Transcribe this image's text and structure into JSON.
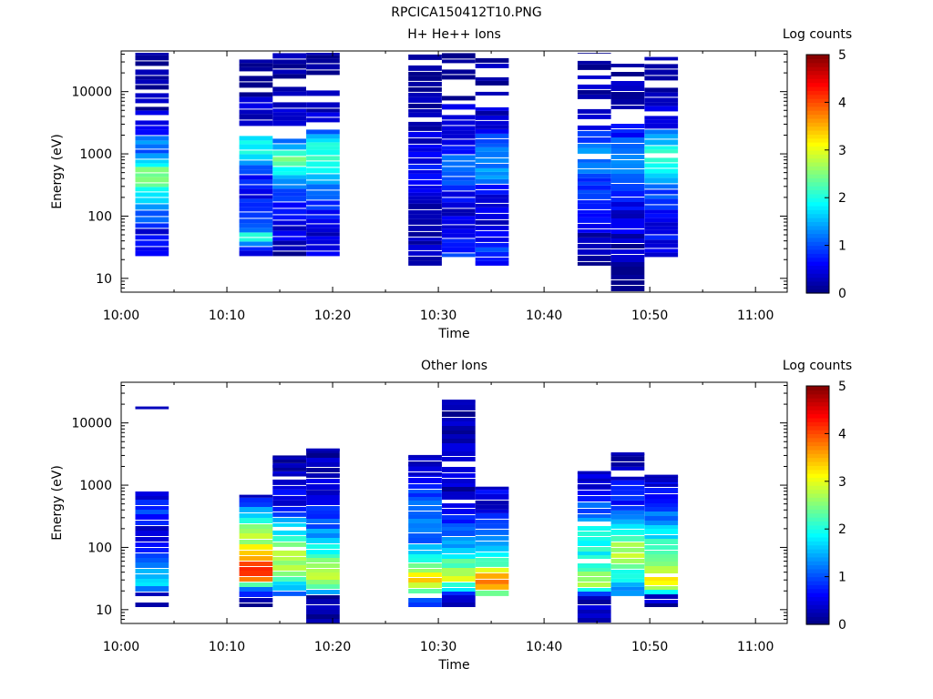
{
  "page_title": "RPCICA150412T10.PNG",
  "colorbar_title": "Log counts",
  "colorbar_ticks": [
    "0",
    "1",
    "2",
    "3",
    "4",
    "5"
  ],
  "chart_data": [
    {
      "type": "heatmap",
      "title": "H+ He++ Ions",
      "xlabel": "Time",
      "ylabel": "Energy (eV)",
      "yscale": "log",
      "ylim": [
        6,
        45000
      ],
      "xlim": [
        "10:00",
        "11:03"
      ],
      "x_tick_labels": [
        "10:00",
        "10:10",
        "10:20",
        "10:30",
        "10:40",
        "10:50",
        "11:00"
      ],
      "y_tick_labels": [
        "10",
        "100",
        "1000",
        "10000"
      ],
      "colorbar": {
        "label": "Log counts",
        "range": [
          0,
          5
        ]
      },
      "blocks": [
        {
          "t0": "10:01:20",
          "t1": "10:04:30",
          "e_min": 22,
          "e_max": 42000,
          "profile": [
            [
              22,
              0.45
            ],
            [
              60,
              0.5
            ],
            [
              150,
              1.6
            ],
            [
              300,
              2.1
            ],
            [
              500,
              2.6
            ],
            [
              700,
              1.9
            ],
            [
              1000,
              0.9
            ],
            [
              1500,
              1.3
            ],
            [
              2500,
              0.4
            ],
            [
              10000,
              0.2
            ],
            [
              42000,
              0.1
            ]
          ]
        },
        {
          "t0": "10:11:10",
          "t1": "10:14:20",
          "e_min": 22,
          "e_max": 42000,
          "profile": [
            [
              22,
              0.5
            ],
            [
              35,
              1.2
            ],
            [
              45,
              2.3
            ],
            [
              60,
              1.4
            ],
            [
              100,
              0.8
            ],
            [
              300,
              0.6
            ],
            [
              700,
              1.1
            ],
            [
              1000,
              1.8
            ],
            [
              1500,
              2.1
            ],
            [
              3000,
              0.5
            ],
            [
              10000,
              0.2
            ],
            [
              42000,
              0.1
            ]
          ]
        },
        {
          "t0": "10:14:20",
          "t1": "10:17:30",
          "e_min": 22,
          "e_max": 42000,
          "profile": [
            [
              22,
              0.1
            ],
            [
              60,
              0.5
            ],
            [
              150,
              0.8
            ],
            [
              300,
              1.1
            ],
            [
              500,
              1.8
            ],
            [
              800,
              2.3
            ],
            [
              1200,
              1.7
            ],
            [
              2000,
              0.6
            ],
            [
              10000,
              0.2
            ],
            [
              42000,
              0.1
            ]
          ]
        },
        {
          "t0": "10:17:30",
          "t1": "10:20:40",
          "e_min": 22,
          "e_max": 42000,
          "profile": [
            [
              22,
              0.9
            ],
            [
              40,
              0.4
            ],
            [
              100,
              0.6
            ],
            [
              300,
              1.4
            ],
            [
              600,
              2.2
            ],
            [
              1000,
              2.0
            ],
            [
              1600,
              1.8
            ],
            [
              3000,
              0.4
            ],
            [
              10000,
              0.2
            ],
            [
              42000,
              0.1
            ]
          ]
        },
        {
          "t0": "10:27:10",
          "t1": "10:30:20",
          "e_min": 16,
          "e_max": 42000,
          "profile": [
            [
              16,
              0.2
            ],
            [
              30,
              0.35
            ],
            [
              60,
              0.3
            ],
            [
              200,
              0.4
            ],
            [
              500,
              0.6
            ],
            [
              1000,
              0.5
            ],
            [
              3000,
              0.3
            ],
            [
              10000,
              0.15
            ],
            [
              42000,
              0.1
            ]
          ]
        },
        {
          "t0": "10:30:20",
          "t1": "10:33:30",
          "e_min": 22,
          "e_max": 42000,
          "profile": [
            [
              22,
              0.9
            ],
            [
              40,
              0.6
            ],
            [
              150,
              0.4
            ],
            [
              300,
              0.9
            ],
            [
              600,
              1.2
            ],
            [
              1000,
              0.9
            ],
            [
              3000,
              0.4
            ],
            [
              10000,
              0.2
            ],
            [
              42000,
              0.1
            ]
          ]
        },
        {
          "t0": "10:33:30",
          "t1": "10:36:40",
          "e_min": 16,
          "e_max": 42000,
          "profile": [
            [
              16,
              0.4
            ],
            [
              25,
              1.0
            ],
            [
              40,
              0.6
            ],
            [
              100,
              0.3
            ],
            [
              200,
              0.5
            ],
            [
              400,
              1.2
            ],
            [
              800,
              1.4
            ],
            [
              1500,
              1.2
            ],
            [
              3000,
              0.4
            ],
            [
              10000,
              0.2
            ],
            [
              42000,
              0.1
            ]
          ]
        },
        {
          "t0": "10:43:10",
          "t1": "10:46:20",
          "e_min": 16,
          "e_max": 42000,
          "profile": [
            [
              16,
              0.2
            ],
            [
              40,
              0.3
            ],
            [
              100,
              0.5
            ],
            [
              300,
              0.9
            ],
            [
              600,
              1.2
            ],
            [
              1000,
              1.5
            ],
            [
              1500,
              1.0
            ],
            [
              3000,
              0.5
            ],
            [
              10000,
              0.2
            ],
            [
              42000,
              0.1
            ]
          ]
        },
        {
          "t0": "10:46:20",
          "t1": "10:49:30",
          "e_min": 6,
          "e_max": 42000,
          "profile": [
            [
              6,
              0.1
            ],
            [
              16,
              0.1
            ],
            [
              60,
              0.4
            ],
            [
              200,
              0.6
            ],
            [
              400,
              1.0
            ],
            [
              700,
              1.3
            ],
            [
              1200,
              1.1
            ],
            [
              3000,
              0.5
            ],
            [
              10000,
              0.2
            ],
            [
              42000,
              0.1
            ]
          ]
        },
        {
          "t0": "10:49:30",
          "t1": "10:52:40",
          "e_min": 22,
          "e_max": 36000,
          "profile": [
            [
              22,
              0.5
            ],
            [
              40,
              0.6
            ],
            [
              100,
              0.5
            ],
            [
              250,
              1.0
            ],
            [
              500,
              2.0
            ],
            [
              1000,
              2.1
            ],
            [
              1600,
              1.6
            ],
            [
              3000,
              0.5
            ],
            [
              10000,
              0.2
            ],
            [
              36000,
              0.1
            ]
          ]
        }
      ]
    },
    {
      "type": "heatmap",
      "title": "Other Ions",
      "xlabel": "Time",
      "ylabel": "Energy (eV)",
      "yscale": "log",
      "ylim": [
        6,
        45000
      ],
      "xlim": [
        "10:00",
        "11:03"
      ],
      "x_tick_labels": [
        "10:00",
        "10:10",
        "10:20",
        "10:30",
        "10:40",
        "10:50",
        "11:00"
      ],
      "y_tick_labels": [
        "10",
        "100",
        "1000",
        "10000"
      ],
      "colorbar": {
        "label": "Log counts",
        "range": [
          0,
          5
        ]
      },
      "blocks": [
        {
          "t0": "10:01:20",
          "t1": "10:04:30",
          "e_min": 11,
          "e_max": 800,
          "profile": [
            [
              11,
              0.1
            ],
            [
              16,
              0.2
            ],
            [
              25,
              1.6
            ],
            [
              40,
              1.8
            ],
            [
              80,
              0.8
            ],
            [
              200,
              0.5
            ],
            [
              400,
              1.0
            ],
            [
              800,
              0.3
            ]
          ],
          "lines": [
            17500
          ]
        },
        {
          "t0": "10:11:10",
          "t1": "10:14:20",
          "e_min": 11,
          "e_max": 700,
          "profile": [
            [
              11,
              0.1
            ],
            [
              16,
              0.3
            ],
            [
              22,
              1.3
            ],
            [
              30,
              3.6
            ],
            [
              45,
              4.2
            ],
            [
              70,
              3.3
            ],
            [
              120,
              2.8
            ],
            [
              250,
              2.3
            ],
            [
              500,
              0.9
            ],
            [
              700,
              0.4
            ]
          ]
        },
        {
          "t0": "10:14:20",
          "t1": "10:17:30",
          "e_min": 16,
          "e_max": 3000,
          "profile": [
            [
              16,
              1.2
            ],
            [
              25,
              1.6
            ],
            [
              40,
              2.5
            ],
            [
              70,
              2.9
            ],
            [
              120,
              2.4
            ],
            [
              250,
              1.4
            ],
            [
              500,
              0.6
            ],
            [
              3000,
              0.2
            ]
          ],
          "lines": [
            2700,
            2000,
            1450
          ]
        },
        {
          "t0": "10:17:30",
          "t1": "10:20:40",
          "e_min": 6,
          "e_max": 3800,
          "profile": [
            [
              6,
              0.1
            ],
            [
              16,
              0.1
            ],
            [
              20,
              1.9
            ],
            [
              30,
              3.0
            ],
            [
              45,
              2.8
            ],
            [
              80,
              2.1
            ],
            [
              150,
              1.5
            ],
            [
              300,
              0.9
            ],
            [
              600,
              0.5
            ],
            [
              3800,
              0.2
            ]
          ],
          "lines": [
            3700,
            1450,
            800
          ]
        },
        {
          "t0": "10:27:10",
          "t1": "10:30:20",
          "e_min": 11,
          "e_max": 2900,
          "profile": [
            [
              11,
              1.1
            ],
            [
              16,
              1.2
            ],
            [
              22,
              2.7
            ],
            [
              30,
              3.3
            ],
            [
              45,
              2.5
            ],
            [
              80,
              1.6
            ],
            [
              150,
              1.0
            ],
            [
              400,
              1.3
            ],
            [
              900,
              0.8
            ],
            [
              2900,
              0.2
            ]
          ],
          "lines": [
            2900,
            2100,
            1500
          ]
        },
        {
          "t0": "10:30:20",
          "t1": "10:33:30",
          "e_min": 11,
          "e_max": 22000,
          "profile": [
            [
              11,
              0.2
            ],
            [
              16,
              0.3
            ],
            [
              22,
              1.8
            ],
            [
              30,
              2.9
            ],
            [
              50,
              2.4
            ],
            [
              100,
              1.6
            ],
            [
              200,
              1.0
            ],
            [
              500,
              0.6
            ],
            [
              700,
              0.3
            ]
          ],
          "lines": [
            22500
          ]
        },
        {
          "t0": "10:33:30",
          "t1": "10:36:40",
          "e_min": 16,
          "e_max": 900,
          "profile": [
            [
              16,
              1.8
            ],
            [
              22,
              3.5
            ],
            [
              30,
              3.9
            ],
            [
              45,
              2.6
            ],
            [
              80,
              2.0
            ],
            [
              150,
              1.2
            ],
            [
              300,
              0.6
            ],
            [
              600,
              0.4
            ],
            [
              900,
              0.8
            ]
          ],
          "lines": [
            900
          ]
        },
        {
          "t0": "10:43:10",
          "t1": "10:46:20",
          "e_min": 6,
          "e_max": 1600,
          "profile": [
            [
              6,
              0.1
            ],
            [
              16,
              0.4
            ],
            [
              25,
              3.0
            ],
            [
              40,
              2.4
            ],
            [
              80,
              1.9
            ],
            [
              150,
              2.1
            ],
            [
              300,
              1.3
            ],
            [
              600,
              0.8
            ],
            [
              1600,
              0.3
            ]
          ],
          "lines": [
            1600,
            1200,
            950
          ]
        },
        {
          "t0": "10:46:20",
          "t1": "10:49:30",
          "e_min": 16,
          "e_max": 3200,
          "profile": [
            [
              16,
              1.3
            ],
            [
              25,
              1.6
            ],
            [
              40,
              2.2
            ],
            [
              70,
              2.8
            ],
            [
              120,
              2.5
            ],
            [
              250,
              1.6
            ],
            [
              500,
              0.7
            ],
            [
              3200,
              0.3
            ]
          ],
          "lines": [
            3200,
            1300
          ]
        },
        {
          "t0": "10:49:30",
          "t1": "10:52:40",
          "e_min": 11,
          "e_max": 1400,
          "profile": [
            [
              11,
              0.2
            ],
            [
              16,
              0.4
            ],
            [
              22,
              2.6
            ],
            [
              30,
              3.2
            ],
            [
              50,
              2.5
            ],
            [
              100,
              2.1
            ],
            [
              200,
              1.6
            ],
            [
              400,
              1.0
            ],
            [
              1400,
              0.3
            ]
          ],
          "lines": [
            1400,
            1000
          ]
        }
      ]
    }
  ]
}
